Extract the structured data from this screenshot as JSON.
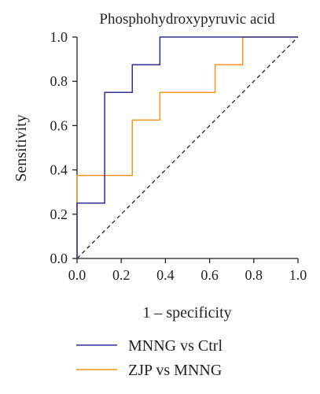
{
  "chart_data": {
    "type": "line",
    "title": "Phosphohydroxypyruvic acid",
    "xlabel": "1 – specificity",
    "ylabel": "Sensitivity",
    "xlim": [
      0,
      1
    ],
    "ylim": [
      0,
      1
    ],
    "xticks": [
      "0.0",
      "0.2",
      "0.4",
      "0.6",
      "0.8",
      "1.0"
    ],
    "yticks": [
      "0.0",
      "0.2",
      "0.4",
      "0.6",
      "0.8",
      "1.0"
    ],
    "grid": false,
    "legend_position": "bottom",
    "reference_line": {
      "x": [
        0,
        1
      ],
      "y": [
        0,
        1
      ],
      "style": "dashed",
      "color": "#231f20"
    },
    "series": [
      {
        "name": "MNNG vs Ctrl",
        "color": "#2e3192",
        "x": [
          0,
          0,
          0.125,
          0.125,
          0.25,
          0.25,
          0.375,
          0.375,
          1.0
        ],
        "y": [
          0,
          0.25,
          0.25,
          0.75,
          0.75,
          0.875,
          0.875,
          1.0,
          1.0
        ]
      },
      {
        "name": "ZJP vs MNNG",
        "color": "#f7941d",
        "x": [
          0,
          0,
          0.25,
          0.25,
          0.375,
          0.375,
          0.625,
          0.625,
          0.75,
          0.75,
          1.0
        ],
        "y": [
          0,
          0.375,
          0.375,
          0.625,
          0.625,
          0.75,
          0.75,
          0.875,
          0.875,
          1.0,
          1.0
        ]
      }
    ]
  }
}
